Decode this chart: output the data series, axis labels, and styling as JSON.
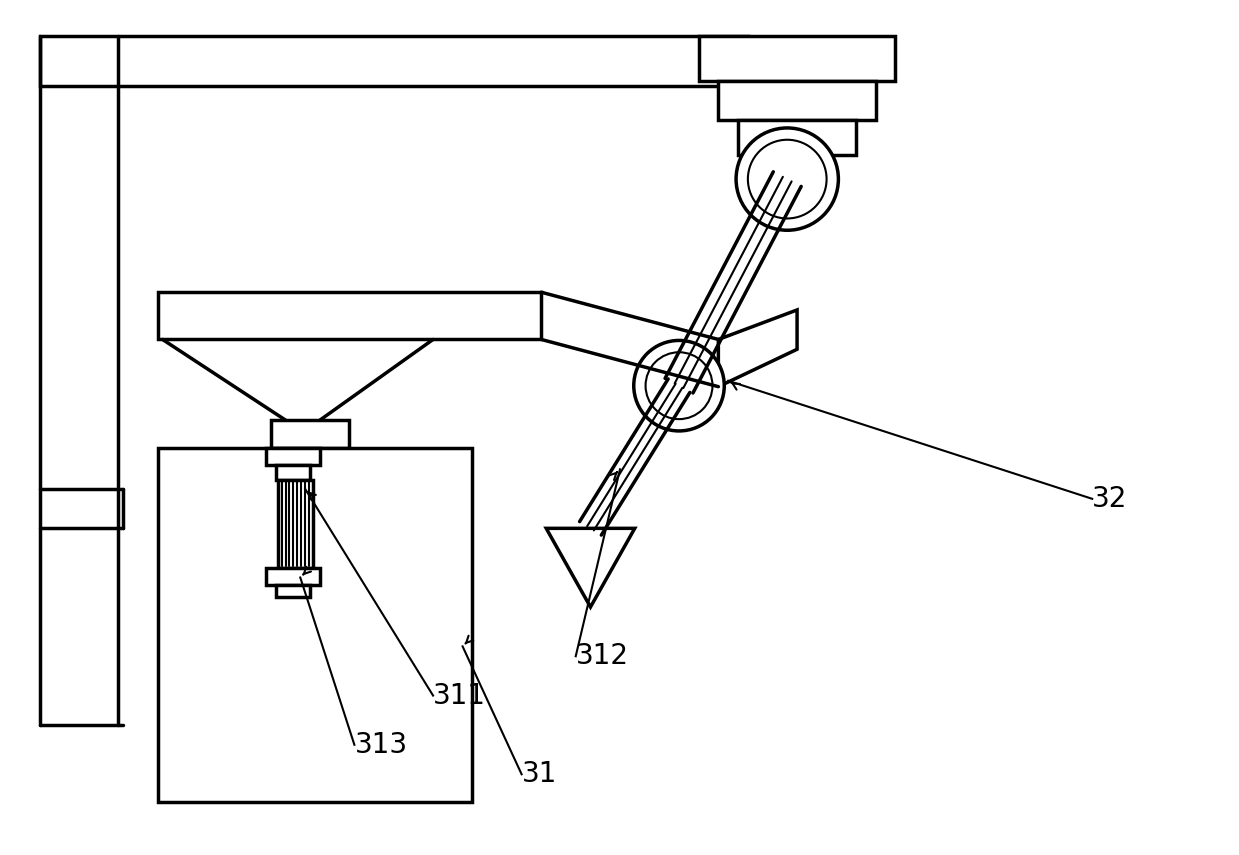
{
  "bg_color": "#ffffff",
  "lc": "#000000",
  "lw": 2.5,
  "tlw": 1.5,
  "fig_w": 12.39,
  "fig_h": 8.55,
  "xlim": [
    0,
    1239
  ],
  "ylim": [
    0,
    855
  ]
}
